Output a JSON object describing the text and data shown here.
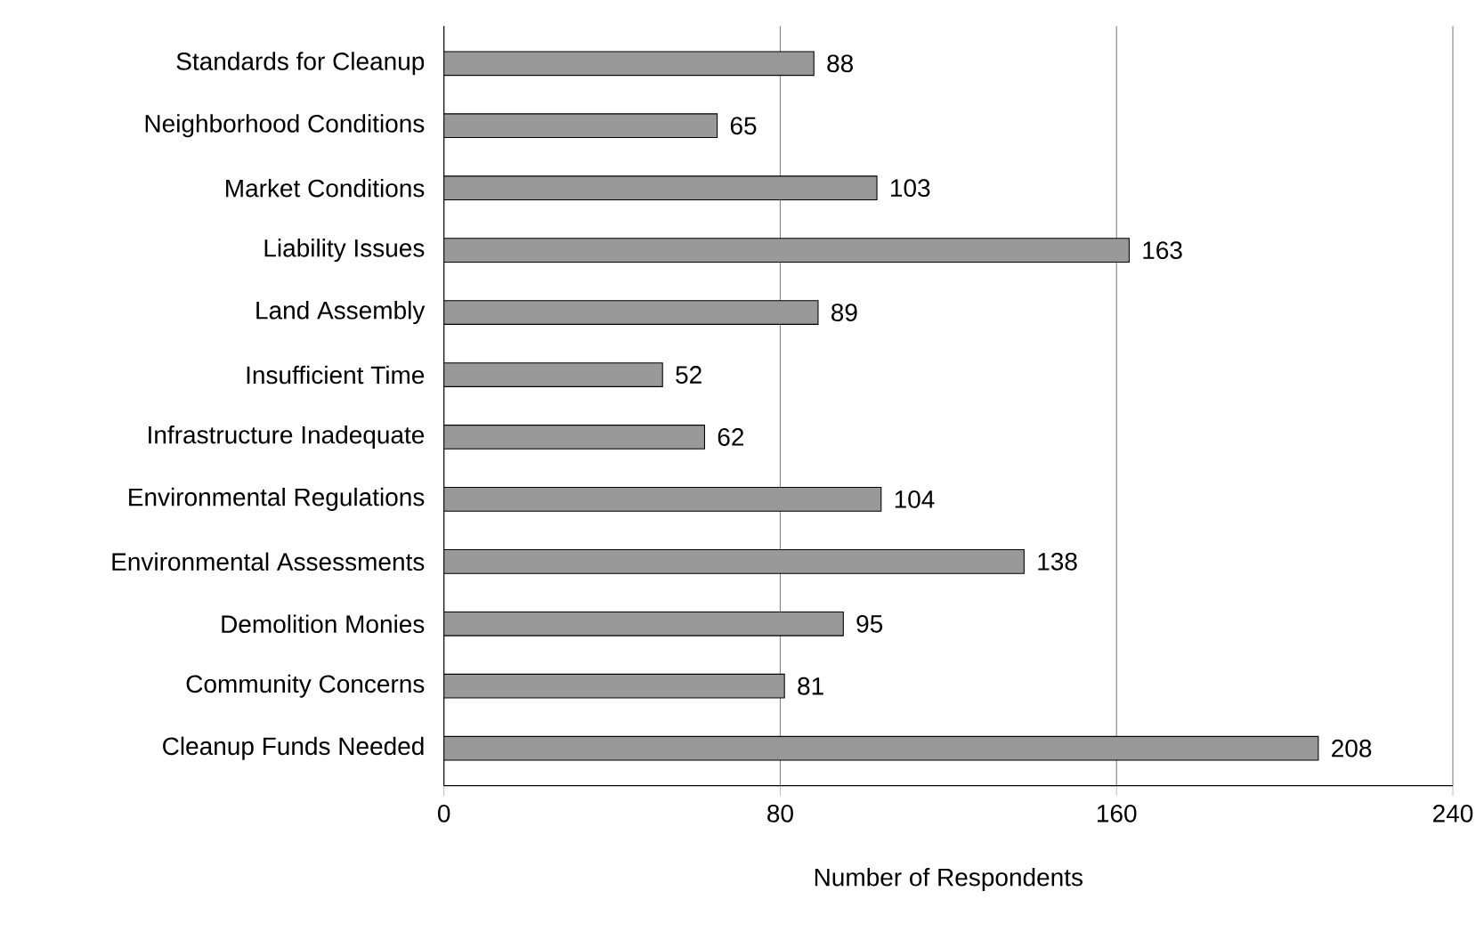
{
  "chart_data": {
    "type": "bar",
    "orientation": "horizontal",
    "xlabel": "Number of Respondents",
    "categories": [
      "Standards for Cleanup",
      "Neighborhood Conditions",
      "Market Conditions",
      "Liability Issues",
      "Land Assembly",
      "Insufficient Time",
      "Infrastructure Inadequate",
      "Environmental Regulations",
      "Environmental Assessments",
      "Demolition Monies",
      "Community Concerns",
      "Cleanup Funds Needed"
    ],
    "values": [
      88,
      65,
      103,
      163,
      89,
      52,
      62,
      104,
      138,
      95,
      81,
      208
    ],
    "color": "#999999",
    "xlim": [
      0,
      240
    ],
    "xticks": [
      0,
      80,
      160,
      240
    ],
    "grid": "x",
    "data_labels": true
  }
}
